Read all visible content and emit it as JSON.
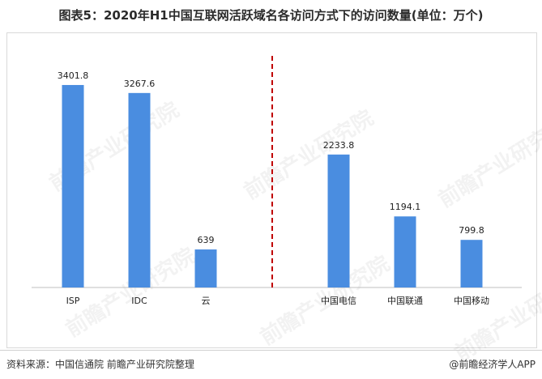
{
  "title": "图表5：2020年H1中国互联网活跃域名各访问方式下的访问数量(单位：万个)",
  "source": "资料来源：中国信通院 前瞻产业研究院整理",
  "credit": "@前瞻经济学人APP",
  "watermark": "前瞻产业研究院",
  "colors": {
    "bar": "#4a8de0",
    "divider": "#c00000",
    "axis": "#bfbfbf"
  },
  "chart_data": {
    "type": "bar",
    "categories": [
      "ISP",
      "IDC",
      "云",
      "",
      "中国电信",
      "中国联通",
      "中国移动"
    ],
    "values": [
      3401.8,
      3267.6,
      639,
      null,
      2233.8,
      1194.1,
      799.8
    ],
    "value_labels": [
      "3401.8",
      "3267.6",
      "639",
      "",
      "2233.8",
      "1194.1",
      "799.8"
    ],
    "ylim": [
      0,
      4000
    ],
    "grid": false,
    "legend": "none",
    "divider_after_category": 3
  }
}
